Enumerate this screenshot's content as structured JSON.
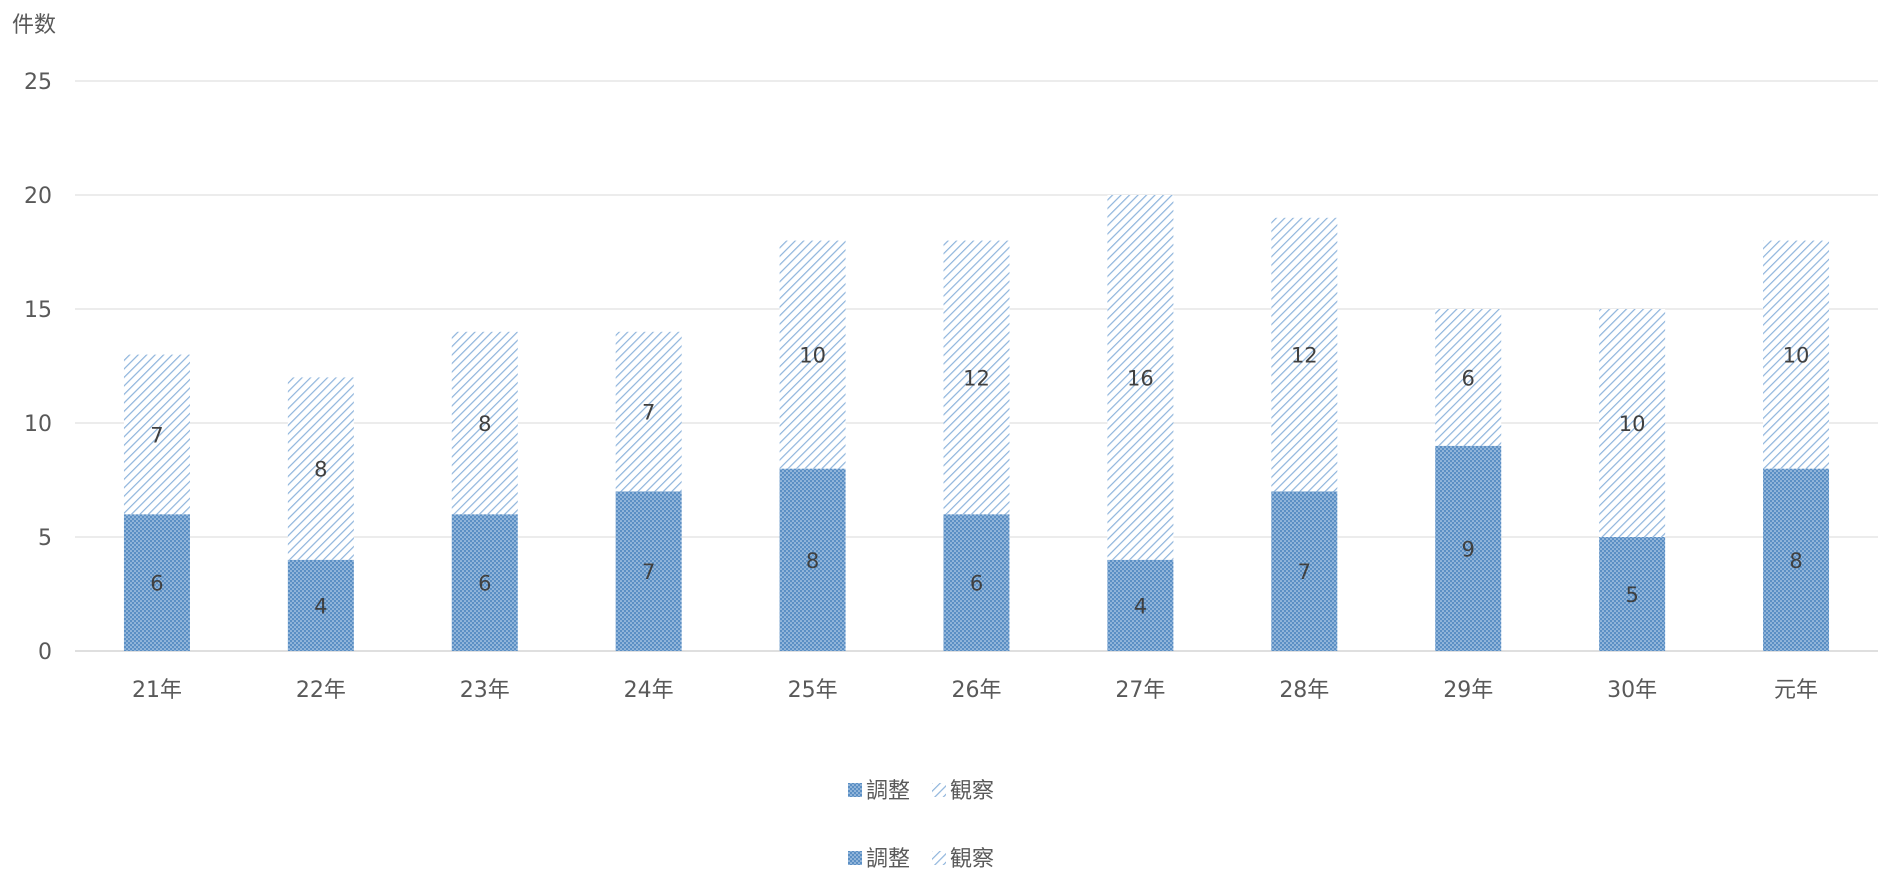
{
  "chart_data": {
    "type": "bar",
    "stacked": true,
    "ylabel": "件数",
    "ylim": [
      0,
      25
    ],
    "yticks": [
      0,
      5,
      10,
      15,
      20,
      25
    ],
    "grid": true,
    "categories": [
      "21年",
      "22年",
      "23年",
      "24年",
      "25年",
      "26年",
      "27年",
      "28年",
      "29年",
      "30年",
      "元年"
    ],
    "series": [
      {
        "name": "調整",
        "values": [
          6,
          4,
          6,
          7,
          8,
          6,
          4,
          7,
          9,
          5,
          8
        ],
        "color": "#5b9bd5",
        "pattern": "dotted"
      },
      {
        "name": "観察",
        "values": [
          7,
          8,
          8,
          7,
          10,
          12,
          16,
          12,
          6,
          10,
          10
        ],
        "color": "#9dc3e6",
        "pattern": "diagonal"
      }
    ],
    "legend_position": "bottom",
    "legend_repeated": true
  }
}
